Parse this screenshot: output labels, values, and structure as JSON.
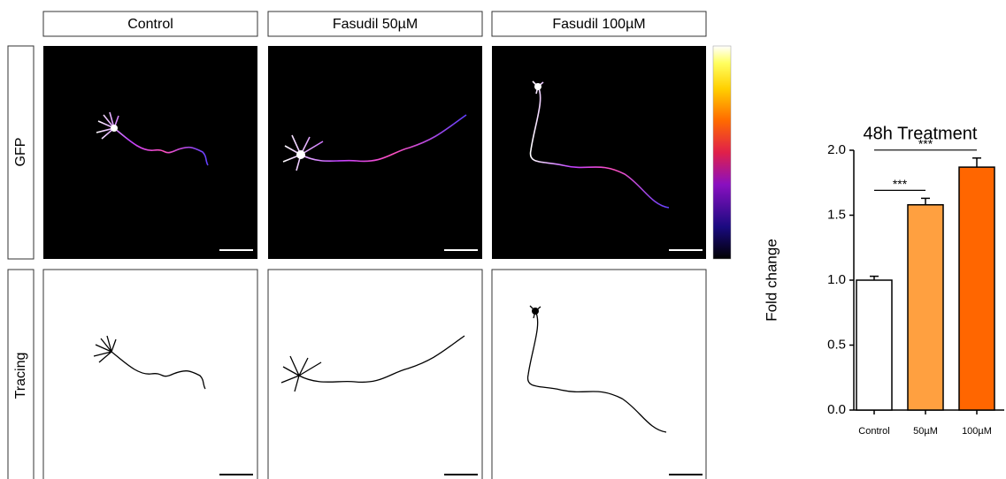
{
  "panels": {
    "columns": [
      "Control",
      "Fasudil 50µM",
      "Fasudil 100µM"
    ],
    "rows": [
      "GFP",
      "Tracing"
    ]
  },
  "chart_data": {
    "type": "bar",
    "title": "48h Treatment",
    "ylabel": "Fold change",
    "categories": [
      "Control",
      "50µM",
      "100µM"
    ],
    "values": [
      1.0,
      1.58,
      1.87
    ],
    "errors": [
      0.03,
      0.05,
      0.07
    ],
    "colors": [
      "#ffffff",
      "#ffa040",
      "#ff6600"
    ],
    "ylim": [
      0,
      2
    ],
    "yticks": [
      {
        "value": 0,
        "label": "0.0"
      },
      0.5,
      {
        "value": 1,
        "label": "1.0"
      },
      1.5,
      {
        "value": 2,
        "label": "2.0"
      }
    ],
    "annotations": [
      {
        "text": "***",
        "from": 0,
        "to": 1
      },
      {
        "text": "***",
        "from": 0,
        "to": 2
      }
    ]
  }
}
